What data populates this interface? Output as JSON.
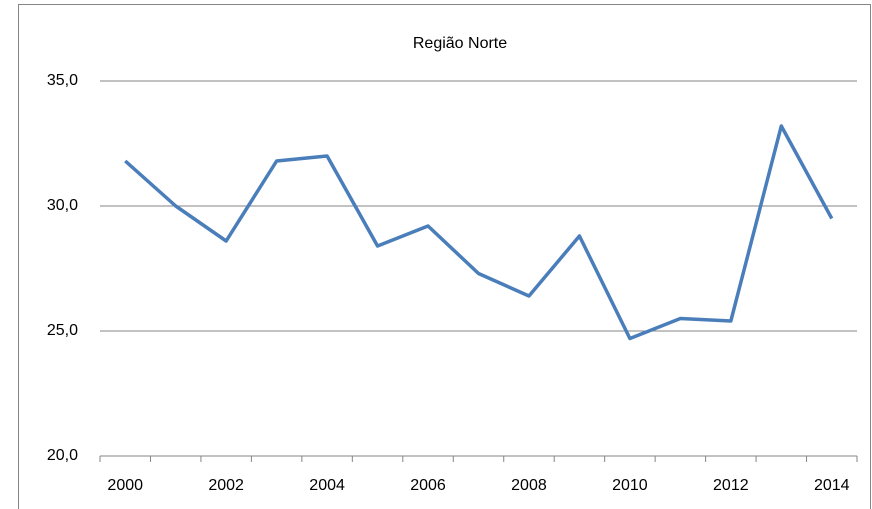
{
  "chart_data": {
    "type": "line",
    "title": "Região Norte",
    "categories": [
      "2000",
      null,
      "2002",
      null,
      "2004",
      null,
      "2006",
      null,
      "2008",
      null,
      "2010",
      null,
      "2012",
      null,
      "2014"
    ],
    "series": [
      {
        "color": "#4a7ebb",
        "values": [
          31.8,
          30.0,
          28.6,
          31.8,
          32.0,
          28.4,
          29.2,
          27.3,
          26.4,
          28.8,
          24.7,
          25.5,
          25.4,
          33.2,
          29.5
        ]
      }
    ],
    "ylim": [
      20,
      35
    ],
    "yticks": [
      {
        "value": 20,
        "label": "20,0"
      },
      {
        "value": 25,
        "label": "25,0"
      },
      {
        "value": 30,
        "label": "30,0"
      },
      {
        "value": 35,
        "label": "35,0"
      }
    ],
    "grid": true
  }
}
